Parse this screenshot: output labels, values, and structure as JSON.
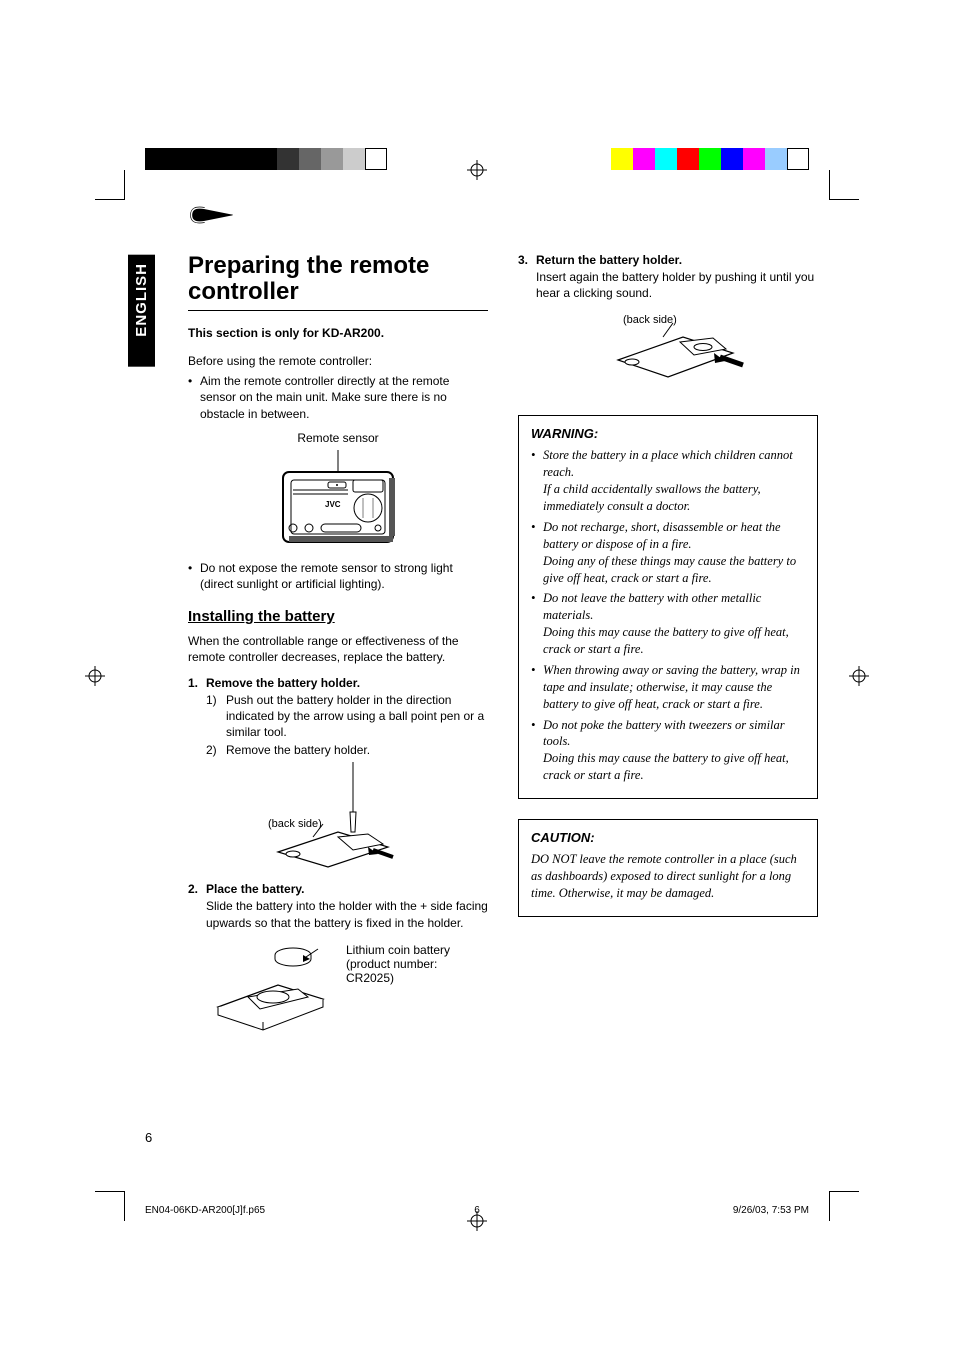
{
  "colorbar_left": [
    "#000000",
    "#000000",
    "#000000",
    "#000000",
    "#000000",
    "#000000",
    "#333333",
    "#666666",
    "#999999",
    "#cccccc",
    "#ffffff"
  ],
  "colorbar_right": [
    "#ffff00",
    "#ff00ff",
    "#00ffff",
    "#ff0000",
    "#00ff00",
    "#0000ff",
    "#ff00ff",
    "#99ccff",
    "#ffffff"
  ],
  "language_tab": "ENGLISH",
  "title": "Preparing the remote controller",
  "section_note": "This section is only for KD-AR200.",
  "intro": "Before using the remote controller:",
  "intro_bullets": [
    "Aim the remote controller directly at the remote sensor on the main unit. Make sure there is no obstacle in between."
  ],
  "remote_sensor_caption": "Remote sensor",
  "brand": "JVC",
  "intro_bullet2": "Do not expose the remote sensor to strong light (direct sunlight or artificial lighting).",
  "h2": "Installing the battery",
  "h2_intro": "When the controllable range or effectiveness of the remote controller decreases, replace the battery.",
  "step1": {
    "num": "1.",
    "title": "Remove the battery holder.",
    "sub": [
      {
        "n": "1)",
        "t": "Push out the battery holder in the direction indicated by the arrow using a ball point pen or a similar tool."
      },
      {
        "n": "2)",
        "t": "Remove the battery holder."
      }
    ],
    "fig_label": "(back side)"
  },
  "step2": {
    "num": "2.",
    "title": "Place the battery.",
    "body": "Slide the battery into the holder with the + side facing upwards so that the battery is fixed in the holder.",
    "fig_caption": "Lithium coin battery (product number: CR2025)"
  },
  "step3": {
    "num": "3.",
    "title": "Return the battery holder.",
    "body": "Insert again the battery holder by pushing it until you hear a clicking sound.",
    "fig_label": "(back side)"
  },
  "warning": {
    "heading": "WARNING:",
    "items": [
      {
        "main": "Store the battery in a place which children cannot reach.",
        "sub": "If a child accidentally swallows the battery, immediately consult a doctor."
      },
      {
        "main": "Do not recharge, short, disassemble or heat the battery or dispose of in a fire.",
        "sub": "Doing any of these things may cause the battery to give off heat, crack or start a fire."
      },
      {
        "main": "Do not leave the battery with other metallic materials.",
        "sub": "Doing this may cause the battery to give off heat, crack or start a fire."
      },
      {
        "main": "When throwing away or saving the battery, wrap in tape and insulate; otherwise, it may cause the battery to give off heat, crack or start a fire.",
        "sub": ""
      },
      {
        "main": "Do not poke the battery with tweezers or similar tools.",
        "sub": "Doing this may cause the battery to give off heat, crack or start a fire."
      }
    ]
  },
  "caution": {
    "heading": "CAUTION:",
    "body": "DO NOT leave the remote controller in a place (such as dashboards) exposed to direct sunlight for a long time. Otherwise, it may be damaged."
  },
  "page_number": "6",
  "footer": {
    "file": "EN04-06KD-AR200[J]f.p65",
    "page": "6",
    "timestamp": "9/26/03, 7:53 PM"
  }
}
